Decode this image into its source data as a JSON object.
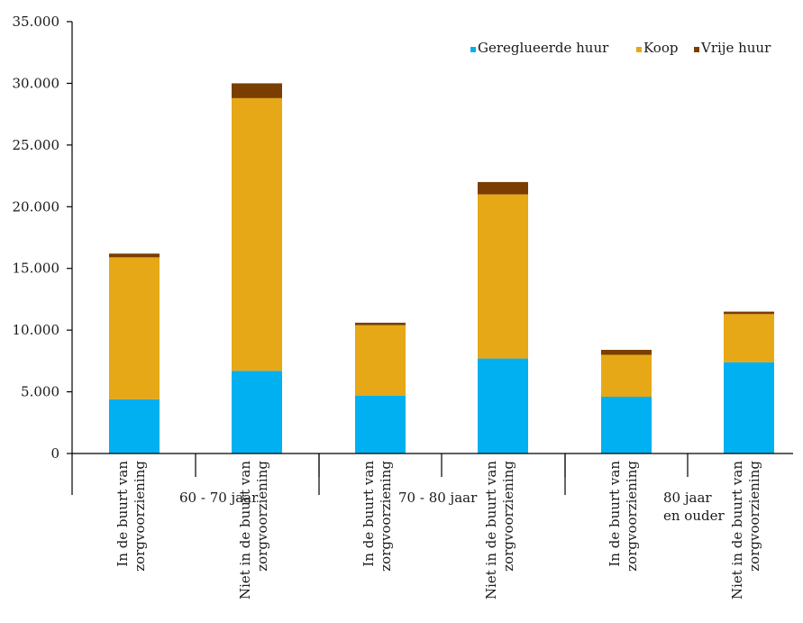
{
  "chart_data": {
    "type": "bar",
    "stacked": true,
    "title": "",
    "xlabel": "",
    "ylabel": "",
    "ylim": [
      0,
      35000
    ],
    "yticks": [
      "0",
      "5.000",
      "10.000",
      "15.000",
      "20.000",
      "25.000",
      "30.000",
      "35.000"
    ],
    "ytick_values": [
      0,
      5000,
      10000,
      15000,
      20000,
      25000,
      30000,
      35000
    ],
    "grid": false,
    "legend_position": "top-right",
    "categories": [
      [
        "In de buurt van",
        "zorgvoorziening"
      ],
      [
        "Niet in de buurt van",
        "zorgvoorziening"
      ],
      [
        "In de buurt van",
        "zorgvoorziening"
      ],
      [
        "Niet in de buurt van",
        "zorgvoorziening"
      ],
      [
        "In de buurt van",
        "zorgvoorziening"
      ],
      [
        "Niet in de buurt van",
        "zorgvoorziening"
      ]
    ],
    "groups": [
      {
        "label": [
          "60 - 70 jaar"
        ],
        "categories": [
          0,
          1
        ]
      },
      {
        "label": [
          "70 - 80 jaar"
        ],
        "categories": [
          2,
          3
        ]
      },
      {
        "label": [
          "80 jaar",
          "en ouder"
        ],
        "categories": [
          4,
          5
        ]
      }
    ],
    "series": [
      {
        "name": "Gereglueerde huur",
        "color": "#00b0f0",
        "values": [
          4400,
          6700,
          4700,
          7700,
          4600,
          7400
        ]
      },
      {
        "name": "Koop",
        "color": "#e6a817",
        "values": [
          11500,
          22100,
          5700,
          13300,
          3400,
          3900
        ]
      },
      {
        "name": "Vrije huur",
        "color": "#7a3e00",
        "values": [
          300,
          1200,
          200,
          1000,
          400,
          200
        ]
      }
    ]
  }
}
